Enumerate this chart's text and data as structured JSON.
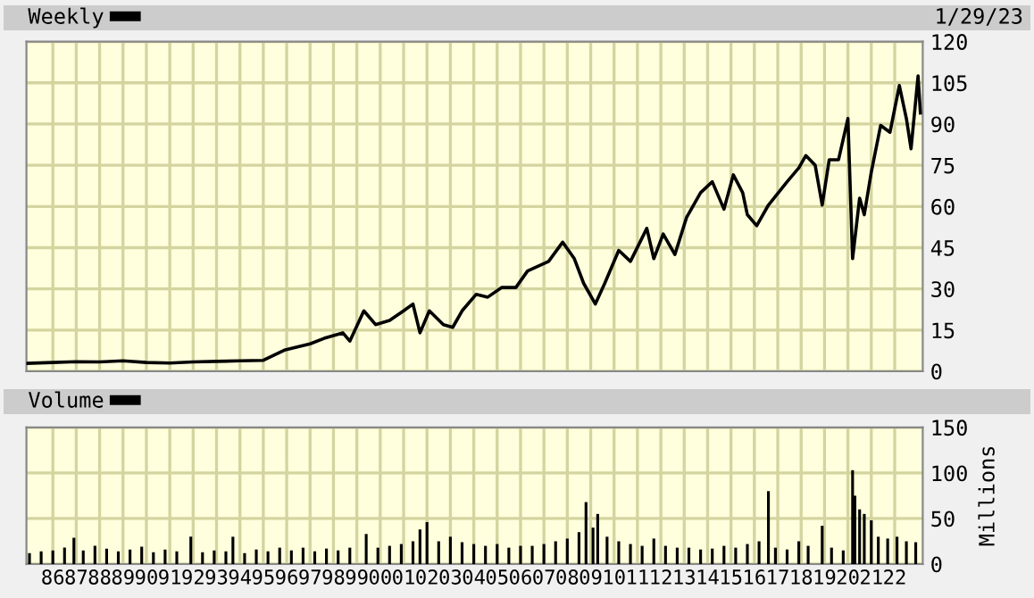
{
  "chart_data": [
    {
      "type": "line",
      "legend": "top left",
      "grid": true,
      "tick_labels": "y",
      "annotations": [
        "1/29/23"
      ],
      "xlim": [
        1984.87,
        2023.2
      ],
      "xticks": [
        {
          "value": 1986,
          "label": null
        },
        {
          "value": 1987,
          "label": null
        },
        {
          "value": 1988,
          "label": null
        },
        {
          "value": 1989,
          "label": null
        },
        {
          "value": 1990,
          "label": null
        },
        {
          "value": 1991,
          "label": null
        },
        {
          "value": 1992,
          "label": null
        },
        {
          "value": 1993,
          "label": null
        },
        {
          "value": 1994,
          "label": null
        },
        {
          "value": 1995,
          "label": null
        },
        {
          "value": 1996,
          "label": null
        },
        {
          "value": 1997,
          "label": null
        },
        {
          "value": 1998,
          "label": null
        },
        {
          "value": 1999,
          "label": null
        },
        {
          "value": 2000,
          "label": null
        },
        {
          "value": 2001,
          "label": null
        },
        {
          "value": 2002,
          "label": null
        },
        {
          "value": 2003,
          "label": null
        },
        {
          "value": 2004,
          "label": null
        },
        {
          "value": 2005,
          "label": null
        },
        {
          "value": 2006,
          "label": null
        },
        {
          "value": 2007,
          "label": null
        },
        {
          "value": 2008,
          "label": null
        },
        {
          "value": 2009,
          "label": null
        },
        {
          "value": 2010,
          "label": null
        },
        {
          "value": 2011,
          "label": null
        },
        {
          "value": 2012,
          "label": null
        },
        {
          "value": 2013,
          "label": null
        },
        {
          "value": 2014,
          "label": null
        },
        {
          "value": 2015,
          "label": null
        },
        {
          "value": 2016,
          "label": null
        },
        {
          "value": 2017,
          "label": null
        },
        {
          "value": 2018,
          "label": null
        },
        {
          "value": 2019,
          "label": null
        },
        {
          "value": 2020,
          "label": null
        },
        {
          "value": 2021,
          "label": null
        },
        {
          "value": 2022,
          "label": null
        }
      ],
      "ylim": [
        0,
        120
      ],
      "yticks": [
        0,
        15,
        30,
        45,
        60,
        75,
        90,
        105,
        120
      ],
      "series": [
        {
          "name": "Weekly",
          "color": "#000000",
          "x": [
            1984.87,
            1986,
            1987,
            1988,
            1989,
            1990,
            1991,
            1992,
            1993,
            1994,
            1995,
            1995.9,
            1997.0,
            1997.6,
            1998.4,
            1998.7,
            1999.3,
            1999.8,
            2000.4,
            2001.0,
            2001.4,
            2001.7,
            2002.1,
            2002.7,
            2003.1,
            2003.5,
            2004.1,
            2004.6,
            2005.2,
            2005.8,
            2006.3,
            2007.2,
            2007.8,
            2008.3,
            2008.7,
            2009.2,
            2009.6,
            2010.2,
            2010.7,
            2011.4,
            2011.7,
            2012.1,
            2012.6,
            2013.1,
            2013.7,
            2014.2,
            2014.7,
            2015.1,
            2015.5,
            2015.7,
            2016.1,
            2016.6,
            2017.4,
            2017.9,
            2018.2,
            2018.6,
            2018.9,
            2019.2,
            2019.6,
            2020.0,
            2020.2,
            2020.5,
            2020.7,
            2021.0,
            2021.4,
            2021.8,
            2022.2,
            2022.5,
            2022.7,
            2023.0,
            2023.1
          ],
          "values": [
            2.9,
            3.2,
            3.5,
            3.4,
            3.8,
            3.2,
            3.0,
            3.4,
            3.6,
            3.8,
            4.0,
            7.7,
            10,
            12,
            14,
            11,
            22,
            17,
            18.5,
            22,
            24.5,
            14,
            22,
            17,
            16,
            22,
            28,
            27,
            30.5,
            30.5,
            36.5,
            40,
            47,
            41,
            32,
            24.5,
            32,
            44,
            40,
            52,
            41,
            50,
            42.5,
            56,
            65,
            69,
            59,
            71.5,
            65,
            57,
            53,
            60.5,
            69,
            74,
            78.5,
            75,
            60.5,
            77,
            77,
            92,
            41,
            63,
            57,
            72.5,
            89.5,
            87,
            104,
            92,
            81,
            107.5,
            94
          ]
        }
      ]
    },
    {
      "type": "bar",
      "legend": "top left",
      "grid": true,
      "ylabel": "Millions",
      "xlim": [
        1984.87,
        2023.2
      ],
      "xticks": [
        {
          "value": 1986,
          "label": "86"
        },
        {
          "value": 1987,
          "label": "87"
        },
        {
          "value": 1988,
          "label": "88"
        },
        {
          "value": 1989,
          "label": "89"
        },
        {
          "value": 1990,
          "label": "90"
        },
        {
          "value": 1991,
          "label": "91"
        },
        {
          "value": 1992,
          "label": "92"
        },
        {
          "value": 1993,
          "label": "93"
        },
        {
          "value": 1994,
          "label": "94"
        },
        {
          "value": 1995,
          "label": "95"
        },
        {
          "value": 1996,
          "label": "96"
        },
        {
          "value": 1997,
          "label": "97"
        },
        {
          "value": 1998,
          "label": "98"
        },
        {
          "value": 1999,
          "label": "99"
        },
        {
          "value": 2000,
          "label": "00"
        },
        {
          "value": 2001,
          "label": "01"
        },
        {
          "value": 2002,
          "label": "02"
        },
        {
          "value": 2003,
          "label": "03"
        },
        {
          "value": 2004,
          "label": "04"
        },
        {
          "value": 2005,
          "label": "05"
        },
        {
          "value": 2006,
          "label": "06"
        },
        {
          "value": 2007,
          "label": "07"
        },
        {
          "value": 2008,
          "label": "08"
        },
        {
          "value": 2009,
          "label": "09"
        },
        {
          "value": 2010,
          "label": "10"
        },
        {
          "value": 2011,
          "label": "11"
        },
        {
          "value": 2012,
          "label": "12"
        },
        {
          "value": 2013,
          "label": "13"
        },
        {
          "value": 2014,
          "label": "14"
        },
        {
          "value": 2015,
          "label": "15"
        },
        {
          "value": 2016,
          "label": "16"
        },
        {
          "value": 2017,
          "label": "17"
        },
        {
          "value": 2018,
          "label": "18"
        },
        {
          "value": 2019,
          "label": "19"
        },
        {
          "value": 2020,
          "label": "20"
        },
        {
          "value": 2021,
          "label": "21"
        },
        {
          "value": 2022,
          "label": "22"
        }
      ],
      "ylim": [
        0,
        150
      ],
      "yticks": [
        0,
        50,
        100,
        150
      ],
      "series": [
        {
          "name": "Volume",
          "color": "#000000",
          "x": [
            1985.0,
            1985.5,
            1986.0,
            1986.5,
            1986.9,
            1987.3,
            1987.8,
            1988.3,
            1988.8,
            1989.3,
            1989.8,
            1990.3,
            1990.8,
            1991.3,
            1991.9,
            1992.4,
            1992.9,
            1993.4,
            1993.7,
            1994.2,
            1994.7,
            1995.2,
            1995.7,
            1996.2,
            1996.7,
            1997.2,
            1997.7,
            1998.2,
            1998.7,
            1999.4,
            1999.9,
            2000.4,
            2000.9,
            2001.4,
            2001.7,
            2002.0,
            2002.5,
            2003.0,
            2003.5,
            2004.0,
            2004.5,
            2005.0,
            2005.5,
            2006.0,
            2006.5,
            2007.0,
            2007.5,
            2008.0,
            2008.5,
            2008.8,
            2009.1,
            2009.3,
            2009.7,
            2010.2,
            2010.7,
            2011.2,
            2011.7,
            2012.2,
            2012.7,
            2013.2,
            2013.7,
            2014.2,
            2014.7,
            2015.2,
            2015.7,
            2016.2,
            2016.6,
            2016.9,
            2017.4,
            2017.9,
            2018.3,
            2018.9,
            2019.3,
            2019.8,
            2020.2,
            2020.3,
            2020.5,
            2020.7,
            2021.0,
            2021.3,
            2021.7,
            2022.1,
            2022.5,
            2022.9
          ],
          "values": [
            12,
            14,
            15,
            18,
            29,
            15,
            20,
            17,
            14,
            16,
            19,
            13,
            16,
            14,
            30,
            13,
            15,
            14,
            30,
            12,
            16,
            14,
            18,
            15,
            18,
            14,
            17,
            15,
            18,
            33,
            18,
            20,
            22,
            25,
            38,
            46,
            25,
            30,
            24,
            22,
            20,
            22,
            18,
            20,
            20,
            22,
            25,
            28,
            35,
            68,
            40,
            55,
            30,
            25,
            22,
            20,
            28,
            20,
            18,
            18,
            16,
            17,
            20,
            18,
            22,
            25,
            80,
            18,
            16,
            25,
            20,
            42,
            18,
            15,
            103,
            75,
            60,
            55,
            48,
            30,
            28,
            30,
            25,
            24
          ]
        }
      ]
    }
  ]
}
